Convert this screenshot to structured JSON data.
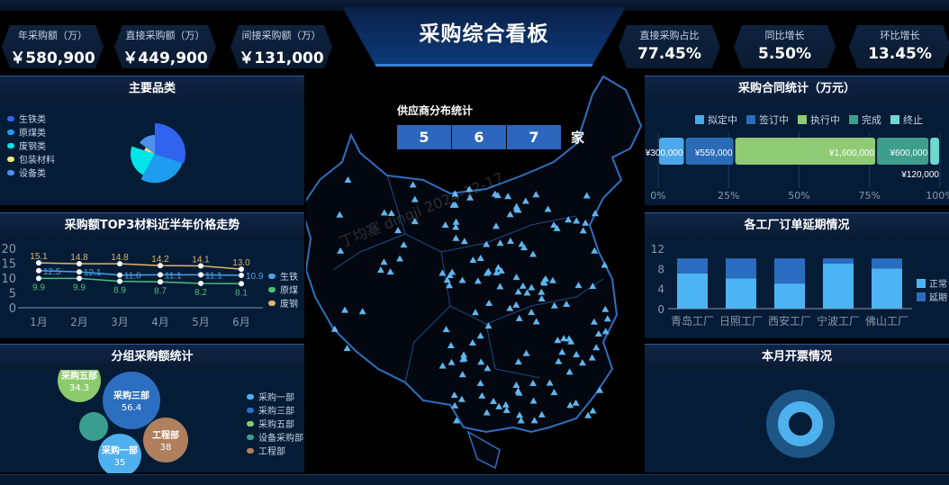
{
  "header": {
    "title": "采购综合看板",
    "kpis_left": [
      {
        "label": "年采购额（万）",
        "value": "￥580,900"
      },
      {
        "label": "直接采购额（万）",
        "value": "￥449,900"
      },
      {
        "label": "间接采购额（万）",
        "value": "￥131,000"
      }
    ],
    "kpis_right": [
      {
        "label": "直接采购占比",
        "value": "77.45%"
      },
      {
        "label": "同比增长",
        "value": "5.50%"
      },
      {
        "label": "环比增长",
        "value": "13.45%"
      }
    ]
  },
  "center": {
    "supplier_title": "供应商分布统计",
    "digits": [
      "5",
      "6",
      "7"
    ],
    "unit": "家",
    "watermark": "丁均塞 dingjl 2024-12-17"
  },
  "chart_data": [
    {
      "id": "categories",
      "title": "主要品类",
      "type": "pie",
      "rose": true,
      "categories": [
        "生铁类",
        "原煤类",
        "废钢类",
        "包装材料",
        "设备类"
      ],
      "values": [
        30,
        28,
        22,
        5,
        15
      ],
      "colors": [
        "#2f63f0",
        "#1e9cf0",
        "#00e5e8",
        "#f5e27a",
        "#4f8ff0"
      ]
    },
    {
      "id": "trend",
      "title": "采购额TOP3材料近半年价格走势",
      "type": "line",
      "categories": [
        "1月",
        "2月",
        "3月",
        "4月",
        "5月",
        "6月"
      ],
      "ylim": [
        0,
        20
      ],
      "yticks": [
        0,
        5,
        10,
        15,
        20
      ],
      "series": [
        {
          "name": "生铁",
          "values": [
            12.5,
            12.1,
            11.0,
            11.1,
            11.1,
            10.9
          ],
          "color": "#4aa3e8"
        },
        {
          "name": "原煤",
          "values": [
            9.9,
            9.9,
            8.9,
            8.7,
            8.2,
            8.1
          ],
          "color": "#4fbf7a"
        },
        {
          "name": "废钢",
          "values": [
            15.1,
            14.8,
            14.8,
            14.2,
            14.1,
            13.0
          ],
          "color": "#e0b56a"
        }
      ]
    },
    {
      "id": "groups",
      "title": "分组采购额统计",
      "type": "bubble",
      "categories": [
        "采购一部",
        "采购三部",
        "采购五部",
        "设备采购部",
        "工程部"
      ],
      "values": [
        35,
        56.4,
        34.3,
        null,
        38
      ],
      "colors": [
        "#4fb0ee",
        "#2c6fc0",
        "#8cca6e",
        "#3a9e8e",
        "#b07f5e"
      ]
    },
    {
      "id": "contracts",
      "title": "采购合同统计（万元）",
      "type": "bar",
      "stacked": "percent",
      "categories": [
        "拟定中",
        "签订中",
        "执行中",
        "完成",
        "终止"
      ],
      "values": [
        300000,
        559000,
        1600000,
        600000,
        120000
      ],
      "labels": [
        "¥300,000",
        "¥559,000",
        "¥1,600,000",
        "¥600,000",
        "¥120,000"
      ],
      "colors": [
        "#4ba8ea",
        "#2a6cb8",
        "#8fcb74",
        "#3d9e8c",
        "#6fd8d0"
      ],
      "xticks": [
        "0%",
        "25%",
        "50%",
        "75%",
        "100%"
      ]
    },
    {
      "id": "delays",
      "title": "各工厂订单延期情况",
      "type": "bar",
      "stacked": true,
      "categories": [
        "青岛工厂",
        "日照工厂",
        "西安工厂",
        "宁波工厂",
        "佛山工厂"
      ],
      "ylim": [
        0,
        12
      ],
      "yticks": [
        0,
        4,
        8,
        12
      ],
      "series": [
        {
          "name": "正常",
          "values": [
            7,
            6,
            5,
            9,
            8
          ],
          "color": "#4db4f3"
        },
        {
          "name": "延期",
          "values": [
            3,
            4,
            5,
            1,
            2
          ],
          "color": "#2a6cc0"
        }
      ]
    },
    {
      "id": "invoice",
      "title": "本月开票情况",
      "type": "pie",
      "colors": [
        "#1d5585",
        "#4fb0ee"
      ]
    }
  ]
}
